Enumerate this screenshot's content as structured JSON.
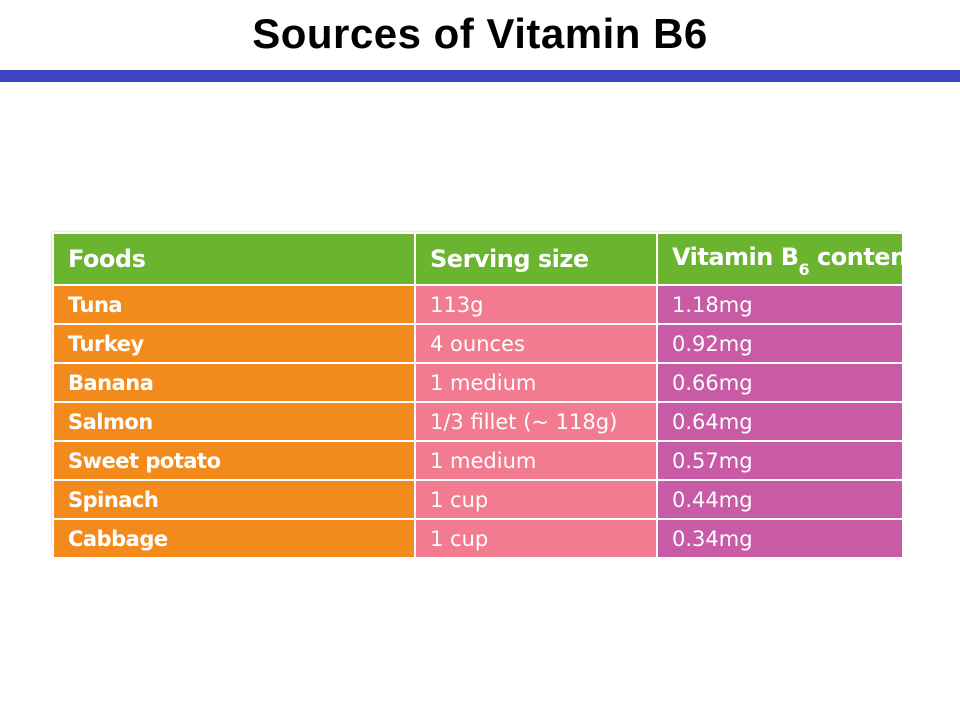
{
  "slide": {
    "title": "Sources of Vitamin B6"
  },
  "colors": {
    "title_rule": "#3f44c2",
    "header_bg": "#6ab42f",
    "foods_col_bg": "#f38b1c",
    "serving_col_bg": "#f27b8f",
    "content_col_bg": "#c85aa6",
    "cell_text": "#ffffff"
  },
  "table": {
    "headers": {
      "foods": "Foods",
      "serving": "Serving size",
      "content_prefix": "Vitamin B",
      "content_sub": "6",
      "content_suffix": " content"
    },
    "rows": [
      {
        "food": "Tuna",
        "serving": "113g",
        "content": "1.18mg"
      },
      {
        "food": "Turkey",
        "serving": "4 ounces",
        "content": "0.92mg"
      },
      {
        "food": "Banana",
        "serving": "1 medium",
        "content": "0.66mg"
      },
      {
        "food": "Salmon",
        "serving": "1/3 fillet (~ 118g)",
        "content": "0.64mg"
      },
      {
        "food": "Sweet potato",
        "serving": "1 medium",
        "content": "0.57mg"
      },
      {
        "food": "Spinach",
        "serving": "1 cup",
        "content": "0.44mg"
      },
      {
        "food": "Cabbage",
        "serving": "1 cup",
        "content": "0.34mg"
      }
    ]
  }
}
